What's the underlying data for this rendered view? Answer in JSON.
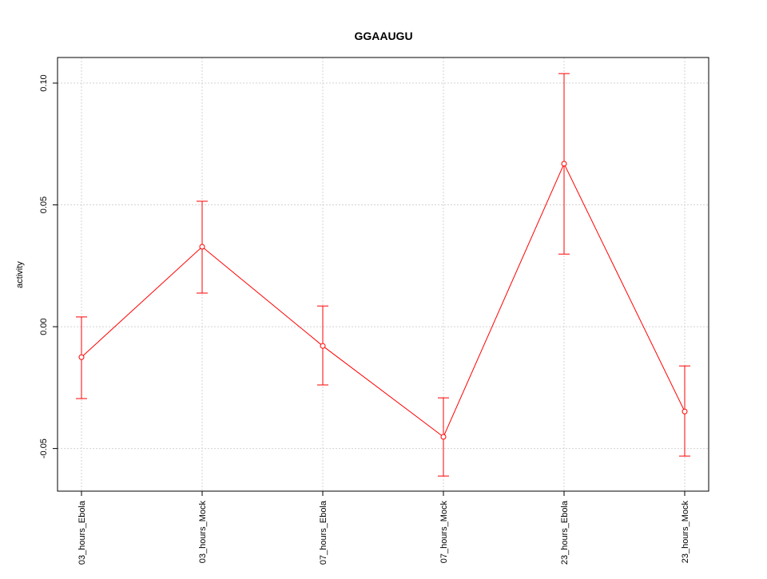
{
  "chart_data": {
    "type": "line",
    "title": "GGAAUGU",
    "xlabel": "",
    "ylabel": "activity",
    "categories": [
      "03_hours_Ebola",
      "03_hours_Mock",
      "07_hours_Ebola",
      "07_hours_Mock",
      "23_hours_Ebola",
      "23_hours_Mock"
    ],
    "series": [
      {
        "values": [
          -0.0125,
          0.0328,
          -0.0079,
          -0.0452,
          0.0669,
          -0.0348
        ],
        "upper": [
          0.004,
          0.0515,
          0.0085,
          -0.0292,
          0.1039,
          -0.0161
        ],
        "lower": [
          -0.0295,
          0.0138,
          -0.0239,
          -0.0613,
          0.0298,
          -0.0531
        ],
        "color": "#ff0000"
      }
    ],
    "yticks": [
      -0.05,
      0.0,
      0.05,
      0.1
    ],
    "ytick_labels": [
      "-0.05",
      "0.00",
      "0.05",
      "0.10"
    ],
    "ylim": [
      -0.0675,
      0.1105
    ],
    "grid": true,
    "error_bars": true
  }
}
